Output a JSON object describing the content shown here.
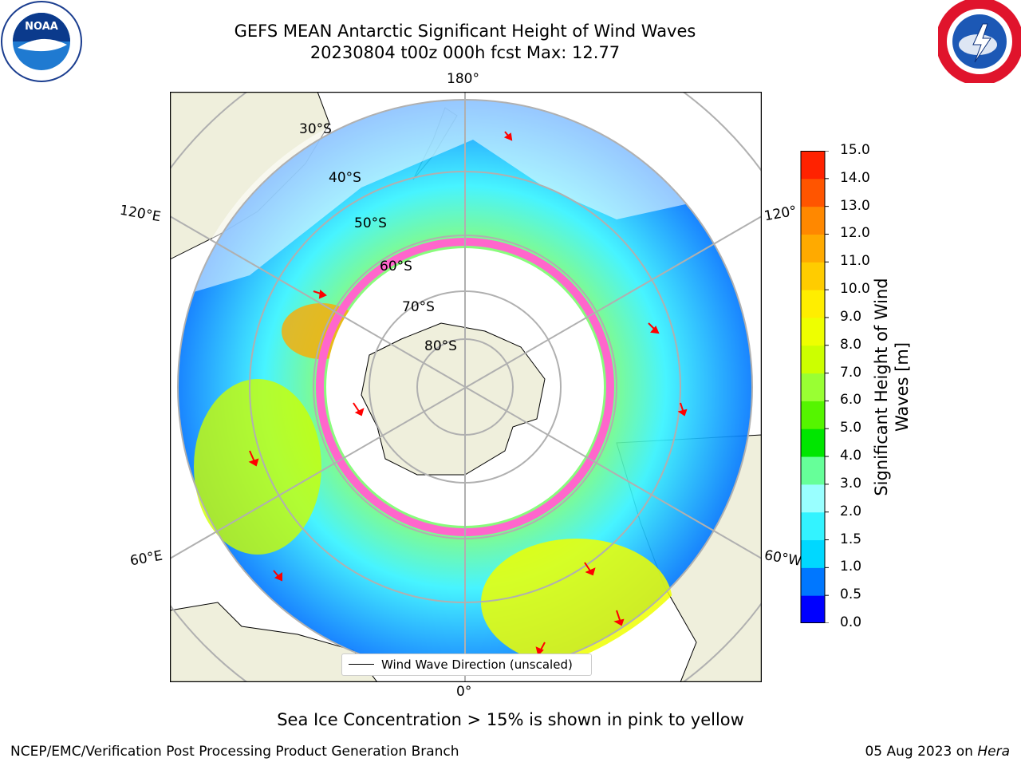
{
  "header": {
    "title_line1": "GEFS MEAN Antarctic Significant Height of Wind Waves",
    "title_line2": "20230804 t00z 000h fcst   Max: 12.77"
  },
  "logos": {
    "left": "noaa-logo",
    "right": "nws-logo"
  },
  "map": {
    "projection": "south-polar-stereographic",
    "lon_labels": [
      "180°",
      "120°E",
      "120°",
      "60°E",
      "60°W",
      "0°"
    ],
    "lat_labels": [
      "30°S",
      "40°S",
      "50°S",
      "60°S",
      "70°S",
      "80°S"
    ],
    "legend": "Wind Wave Direction (unscaled)"
  },
  "colorbar": {
    "label_line1": "Significant Height of Wind",
    "label_line2": "Waves [m]",
    "ticks": [
      "0.0",
      "0.5",
      "1.0",
      "1.5",
      "2.0",
      "3.0",
      "4.0",
      "5.0",
      "6.0",
      "7.0",
      "8.0",
      "9.0",
      "10.0",
      "11.0",
      "12.0",
      "13.0",
      "14.0",
      "15.0"
    ],
    "colors": [
      "#0000ff",
      "#0077ff",
      "#00d8ff",
      "#33f3ff",
      "#99ffff",
      "#66ff99",
      "#00e600",
      "#55f500",
      "#99ff33",
      "#ccff00",
      "#eeff00",
      "#ffee00",
      "#ffcc00",
      "#ffaa00",
      "#ff8800",
      "#ff5500",
      "#ff2200"
    ]
  },
  "caption": "Sea Ice Concentration > 15% is shown in pink to yellow",
  "footer": {
    "left": "NCEP/EMC/Verification Post Processing Product Generation Branch",
    "right_prefix": "05 Aug 2023 on ",
    "right_machine": "Hera"
  },
  "colors": {
    "land": "#efefdc",
    "ice": "#ff66cc",
    "arrow": "#ff0000",
    "grid": "#b0b0b0"
  }
}
